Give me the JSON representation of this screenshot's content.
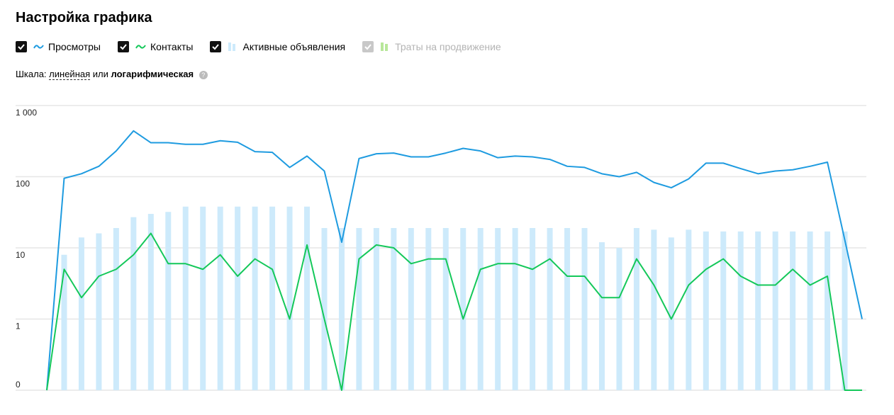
{
  "header": {
    "title": "Настройка графика"
  },
  "controls": {
    "scale_label": "Шкала:",
    "scale_linear": "линейная",
    "scale_or": "или",
    "scale_log": "логарифмическая"
  },
  "chart_data": {
    "type": "line",
    "scale": "log",
    "ylim": [
      0,
      1000
    ],
    "yticks": [
      0,
      1,
      10,
      100,
      {
        "value": 1000,
        "label": "1 000"
      }
    ],
    "grid": true,
    "series": [
      {
        "name": "Просмотры",
        "kind": "line",
        "checked": true,
        "color": "#1e9be0",
        "values": [
          0,
          95,
          110,
          140,
          230,
          440,
          300,
          300,
          285,
          285,
          320,
          305,
          225,
          220,
          135,
          195,
          120,
          12,
          180,
          210,
          215,
          190,
          190,
          215,
          250,
          230,
          185,
          195,
          190,
          175,
          140,
          135,
          110,
          100,
          115,
          83,
          70,
          93,
          155,
          155,
          130,
          110,
          120,
          125,
          140,
          160,
          13,
          1
        ]
      },
      {
        "name": "Контакты",
        "kind": "line",
        "checked": true,
        "color": "#14c85a",
        "values": [
          0,
          5,
          2,
          4,
          5,
          8,
          16,
          6,
          6,
          5,
          8,
          4,
          7,
          5,
          1,
          11,
          1,
          0,
          7,
          11,
          10,
          6,
          7,
          7,
          1,
          5,
          6,
          6,
          5,
          7,
          4,
          4,
          2,
          2,
          7,
          3,
          1,
          3,
          5,
          7,
          4,
          3,
          3,
          5,
          3,
          4,
          0,
          0
        ]
      },
      {
        "name": "Активные объявления",
        "kind": "bar",
        "checked": true,
        "color": "#cdeafb",
        "values": [
          null,
          8,
          14,
          16,
          19,
          27,
          30,
          32,
          38,
          38,
          38,
          38,
          38,
          38,
          38,
          38,
          19,
          19,
          19,
          19,
          19,
          19,
          19,
          19,
          19,
          19,
          19,
          19,
          19,
          19,
          19,
          19,
          12,
          10,
          19,
          18,
          14,
          18,
          17,
          17,
          17,
          17,
          17,
          17,
          17,
          17,
          17,
          null
        ]
      },
      {
        "name": "Траты на продвижение",
        "kind": "bar",
        "checked": false,
        "color": "#b8e79a"
      }
    ]
  }
}
